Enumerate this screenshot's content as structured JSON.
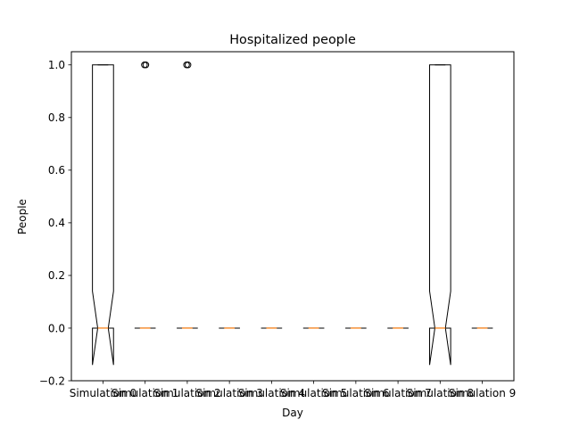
{
  "chart_data": {
    "type": "boxplot",
    "title": "Hospitalized people",
    "xlabel": "Day",
    "ylabel": "People",
    "ylim": [
      -0.2,
      1.05
    ],
    "yticks": [
      -0.2,
      0.0,
      0.2,
      0.4,
      0.6,
      0.8,
      1.0
    ],
    "ytick_labels": [
      "−0.2",
      "0.0",
      "0.2",
      "0.4",
      "0.6",
      "0.8",
      "1.0"
    ],
    "notched": true,
    "grid": false,
    "colors": {
      "box": "#000000",
      "median": "#ff7f0e"
    },
    "categories": [
      "Simulation 0",
      "Simulation 1",
      "Simulation 2",
      "Simulation 3",
      "Simulation 4",
      "Simulation 5",
      "Simulation 6",
      "Simulation 7",
      "Simulation 8",
      "Simulation 9"
    ],
    "boxes": [
      {
        "q1": 0.0,
        "median": 0.0,
        "q3": 1.0,
        "whislo": 0.0,
        "whishi": 1.0,
        "notch_lo": -0.14,
        "notch_hi": 0.14,
        "fliers": []
      },
      {
        "q1": 0.0,
        "median": 0.0,
        "q3": 0.0,
        "whislo": 0.0,
        "whishi": 0.0,
        "notch_lo": 0.0,
        "notch_hi": 0.0,
        "fliers": [
          1.0
        ]
      },
      {
        "q1": 0.0,
        "median": 0.0,
        "q3": 0.0,
        "whislo": 0.0,
        "whishi": 0.0,
        "notch_lo": 0.0,
        "notch_hi": 0.0,
        "fliers": [
          1.0
        ]
      },
      {
        "q1": 0.0,
        "median": 0.0,
        "q3": 0.0,
        "whislo": 0.0,
        "whishi": 0.0,
        "notch_lo": 0.0,
        "notch_hi": 0.0,
        "fliers": []
      },
      {
        "q1": 0.0,
        "median": 0.0,
        "q3": 0.0,
        "whislo": 0.0,
        "whishi": 0.0,
        "notch_lo": 0.0,
        "notch_hi": 0.0,
        "fliers": []
      },
      {
        "q1": 0.0,
        "median": 0.0,
        "q3": 0.0,
        "whislo": 0.0,
        "whishi": 0.0,
        "notch_lo": 0.0,
        "notch_hi": 0.0,
        "fliers": []
      },
      {
        "q1": 0.0,
        "median": 0.0,
        "q3": 0.0,
        "whislo": 0.0,
        "whishi": 0.0,
        "notch_lo": 0.0,
        "notch_hi": 0.0,
        "fliers": []
      },
      {
        "q1": 0.0,
        "median": 0.0,
        "q3": 0.0,
        "whislo": 0.0,
        "whishi": 0.0,
        "notch_lo": 0.0,
        "notch_hi": 0.0,
        "fliers": []
      },
      {
        "q1": 0.0,
        "median": 0.0,
        "q3": 1.0,
        "whislo": 0.0,
        "whishi": 1.0,
        "notch_lo": -0.14,
        "notch_hi": 0.14,
        "fliers": []
      },
      {
        "q1": 0.0,
        "median": 0.0,
        "q3": 0.0,
        "whislo": 0.0,
        "whishi": 0.0,
        "notch_lo": 0.0,
        "notch_hi": 0.0,
        "fliers": []
      }
    ]
  }
}
